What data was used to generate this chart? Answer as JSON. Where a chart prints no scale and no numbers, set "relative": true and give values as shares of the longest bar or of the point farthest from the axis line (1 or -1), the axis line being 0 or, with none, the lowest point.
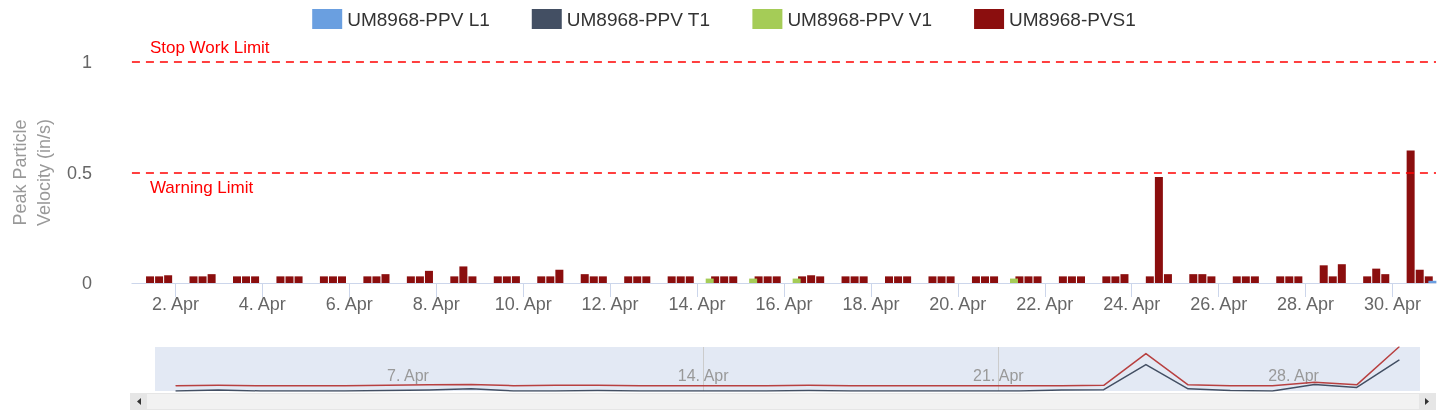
{
  "chart_data": [
    {
      "type": "bar",
      "ylabel": "Peak Particle Velocity (in/s)",
      "legend": "top",
      "grid": false,
      "xlim": [
        "--04-01T00:00",
        "--05-01T00:00"
      ],
      "xticks": [
        {
          "value": "--04-02",
          "label": "2. Apr"
        },
        {
          "value": "--04-04",
          "label": "4. Apr"
        },
        {
          "value": "--04-06",
          "label": "6. Apr"
        },
        {
          "value": "--04-08",
          "label": "8. Apr"
        },
        {
          "value": "--04-10",
          "label": "10. Apr"
        },
        {
          "value": "--04-12",
          "label": "12. Apr"
        },
        {
          "value": "--04-14",
          "label": "14. Apr"
        },
        {
          "value": "--04-16",
          "label": "16. Apr"
        },
        {
          "value": "--04-18",
          "label": "18. Apr"
        },
        {
          "value": "--04-20",
          "label": "20. Apr"
        },
        {
          "value": "--04-22",
          "label": "22. Apr"
        },
        {
          "value": "--04-24",
          "label": "24. Apr"
        },
        {
          "value": "--04-26",
          "label": "26. Apr"
        },
        {
          "value": "--04-28",
          "label": "28. Apr"
        },
        {
          "value": "--04-30",
          "label": "30. Apr"
        }
      ],
      "ylim": [
        0,
        1
      ],
      "yticks": [
        0,
        0.5,
        1
      ],
      "ref_lines": [
        {
          "axis": "y",
          "value": 1,
          "label": "Stop Work Limit",
          "color": "#ff0000",
          "line_style": "dashed"
        },
        {
          "axis": "y",
          "value": 0.5,
          "label": "Warning Limit",
          "color": "#ff0000",
          "line_style": "dashed"
        }
      ],
      "series": [
        {
          "name": "UM8968-PPV L1",
          "color": "#6a9fe0",
          "x": [
            "--04-30T22:00"
          ],
          "values": [
            0.01
          ]
        },
        {
          "name": "UM8968-PPV T1",
          "color": "#434f63"
        },
        {
          "name": "UM8968-PPV V1",
          "color": "#a5cc57",
          "x": [
            "--04-14T07:00",
            "--04-15T07:00",
            "--04-16T07:00",
            "--04-21T07:00"
          ],
          "values": [
            0.02,
            0.02,
            0.02,
            0.02
          ]
        },
        {
          "name": "UM8968-PVS1",
          "color": "#8b0e0e",
          "x": [
            "--04-01T10:00",
            "--04-01T15:00",
            "--04-01T20:00",
            "--04-02T10:00",
            "--04-02T15:00",
            "--04-02T20:00",
            "--04-03T10:00",
            "--04-03T15:00",
            "--04-03T20:00",
            "--04-04T10:00",
            "--04-04T15:00",
            "--04-04T20:00",
            "--04-05T10:00",
            "--04-05T15:00",
            "--04-05T20:00",
            "--04-06T10:00",
            "--04-06T15:00",
            "--04-06T20:00",
            "--04-07T10:00",
            "--04-07T15:00",
            "--04-07T20:00",
            "--04-08T10:00",
            "--04-08T15:00",
            "--04-08T20:00",
            "--04-09T10:00",
            "--04-09T15:00",
            "--04-09T20:00",
            "--04-10T10:00",
            "--04-10T15:00",
            "--04-10T20:00",
            "--04-11T10:00",
            "--04-11T15:00",
            "--04-11T20:00",
            "--04-12T10:00",
            "--04-12T15:00",
            "--04-12T20:00",
            "--04-13T10:00",
            "--04-13T15:00",
            "--04-13T20:00",
            "--04-14T10:00",
            "--04-14T15:00",
            "--04-14T20:00",
            "--04-15T10:00",
            "--04-15T15:00",
            "--04-15T20:00",
            "--04-16T10:00",
            "--04-16T15:00",
            "--04-16T20:00",
            "--04-17T10:00",
            "--04-17T15:00",
            "--04-17T20:00",
            "--04-18T10:00",
            "--04-18T15:00",
            "--04-18T20:00",
            "--04-19T10:00",
            "--04-19T15:00",
            "--04-19T20:00",
            "--04-20T10:00",
            "--04-20T15:00",
            "--04-20T20:00",
            "--04-21T10:00",
            "--04-21T15:00",
            "--04-21T20:00",
            "--04-22T10:00",
            "--04-22T15:00",
            "--04-22T20:00",
            "--04-23T10:00",
            "--04-23T15:00",
            "--04-23T20:00",
            "--04-24T10:00",
            "--04-24T15:00",
            "--04-24T20:00",
            "--04-25T10:00",
            "--04-25T15:00",
            "--04-25T20:00",
            "--04-26T10:00",
            "--04-26T15:00",
            "--04-26T20:00",
            "--04-27T10:00",
            "--04-27T15:00",
            "--04-27T20:00",
            "--04-28T10:00",
            "--04-28T15:00",
            "--04-28T20:00",
            "--04-29T10:00",
            "--04-29T15:00",
            "--04-29T20:00",
            "--04-30T10:00",
            "--04-30T15:00",
            "--04-30T20:00"
          ],
          "values": [
            0.03,
            0.03,
            0.035,
            0.03,
            0.03,
            0.04,
            0.03,
            0.03,
            0.03,
            0.03,
            0.03,
            0.03,
            0.03,
            0.03,
            0.03,
            0.03,
            0.03,
            0.04,
            0.03,
            0.03,
            0.055,
            0.03,
            0.075,
            0.03,
            0.03,
            0.03,
            0.03,
            0.03,
            0.03,
            0.06,
            0.04,
            0.03,
            0.03,
            0.03,
            0.03,
            0.03,
            0.03,
            0.03,
            0.03,
            0.03,
            0.03,
            0.03,
            0.03,
            0.03,
            0.03,
            0.03,
            0.035,
            0.03,
            0.03,
            0.03,
            0.03,
            0.03,
            0.03,
            0.03,
            0.03,
            0.03,
            0.03,
            0.03,
            0.03,
            0.03,
            0.03,
            0.03,
            0.03,
            0.03,
            0.03,
            0.03,
            0.03,
            0.03,
            0.04,
            0.03,
            0.48,
            0.04,
            0.04,
            0.04,
            0.03,
            0.03,
            0.03,
            0.03,
            0.03,
            0.03,
            0.03,
            0.08,
            0.03,
            0.085,
            0.03,
            0.065,
            0.04,
            0.6,
            0.06,
            0.03
          ]
        }
      ]
    },
    {
      "type": "line",
      "relative": true,
      "grid": "x",
      "tick_labels": "x",
      "xlim": [
        "--04-01T00:00",
        "--05-01T00:00"
      ],
      "xticks": [
        {
          "value": "--04-07",
          "label": "7. Apr"
        },
        {
          "value": "--04-14",
          "label": "14. Apr"
        },
        {
          "value": "--04-21",
          "label": "21. Apr"
        },
        {
          "value": "--04-28",
          "label": "28. Apr"
        }
      ],
      "x": [
        "--04-01T12:00",
        "--04-02T12:00",
        "--04-03T12:00",
        "--04-04T12:00",
        "--04-05T12:00",
        "--04-06T12:00",
        "--04-07T12:00",
        "--04-08T12:00",
        "--04-09T12:00",
        "--04-10T12:00",
        "--04-11T12:00",
        "--04-12T12:00",
        "--04-13T12:00",
        "--04-14T12:00",
        "--04-15T12:00",
        "--04-16T12:00",
        "--04-17T12:00",
        "--04-18T12:00",
        "--04-19T12:00",
        "--04-20T12:00",
        "--04-21T12:00",
        "--04-22T12:00",
        "--04-23T12:00",
        "--04-24T12:00",
        "--04-25T12:00",
        "--04-26T12:00",
        "--04-27T12:00",
        "--04-28T12:00",
        "--04-29T12:00",
        "--04-30T12:00"
      ],
      "series": [
        {
          "color": "#b84040",
          "values": [
            0.12,
            0.13,
            0.12,
            0.12,
            0.12,
            0.13,
            0.14,
            0.15,
            0.12,
            0.13,
            0.13,
            0.12,
            0.12,
            0.12,
            0.12,
            0.13,
            0.12,
            0.12,
            0.12,
            0.12,
            0.12,
            0.12,
            0.13,
            0.85,
            0.14,
            0.12,
            0.12,
            0.2,
            0.14,
            1
          ]
        },
        {
          "color": "#434f63",
          "values": [
            0,
            0.02,
            0,
            0,
            0,
            0.01,
            0.02,
            0.05,
            0,
            0,
            0.01,
            0,
            0,
            0,
            0,
            0.01,
            0,
            0,
            0,
            0,
            0,
            0.02,
            0.03,
            0.6,
            0.05,
            0.01,
            0,
            0.15,
            0.08,
            0.7
          ]
        }
      ]
    }
  ]
}
